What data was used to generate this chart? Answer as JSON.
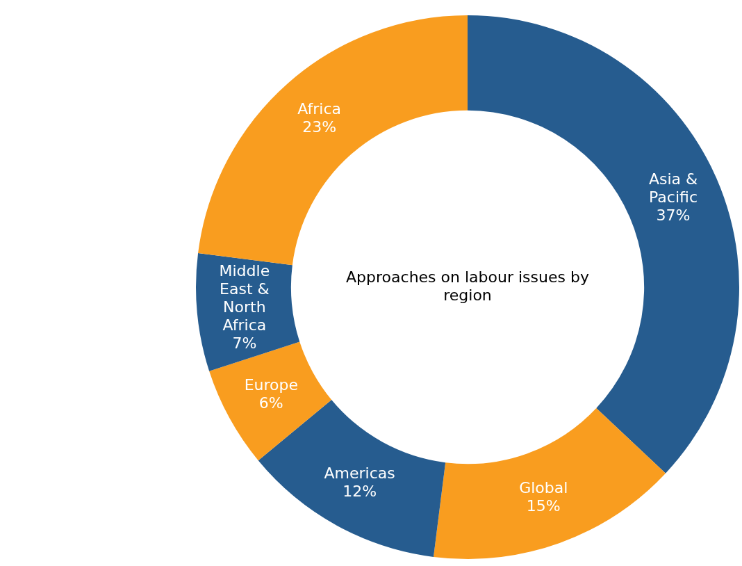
{
  "chart_data": {
    "type": "donut",
    "title": "Approaches on labour issues by region",
    "categories": [
      "Asia & Pacific",
      "Global",
      "Americas",
      "Europe",
      "Middle East & North Africa",
      "Africa"
    ],
    "values": [
      37,
      15,
      12,
      6,
      7,
      23
    ],
    "value_labels": [
      "37%",
      "15%",
      "12%",
      "6%",
      "7%",
      "23%"
    ],
    "colors": [
      "#265c8f",
      "#f99d1f",
      "#265c8f",
      "#f99d1f",
      "#265c8f",
      "#f99d1f"
    ],
    "legend": false
  }
}
